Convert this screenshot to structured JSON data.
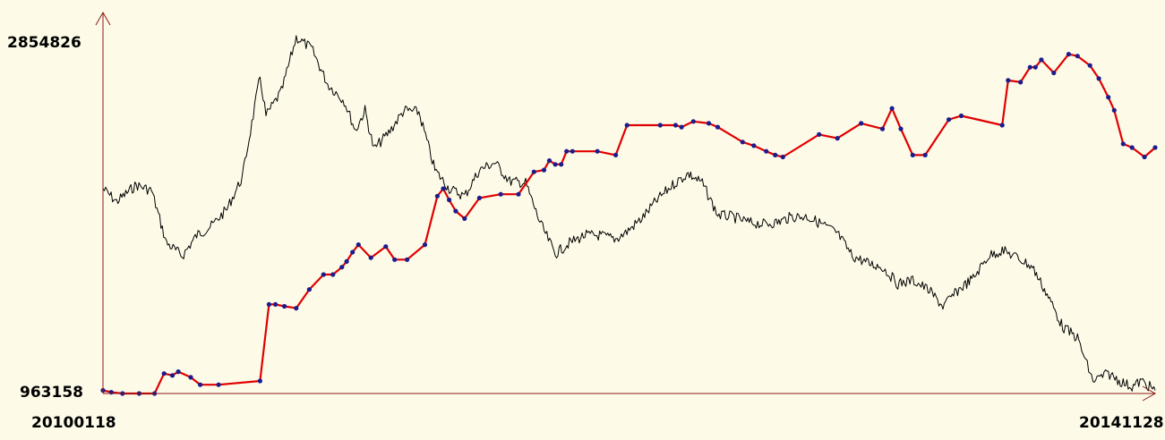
{
  "chart_data": {
    "type": "line",
    "y_labels": {
      "top": "2854826",
      "bottom": "963158"
    },
    "x_labels": {
      "start": "20100118",
      "end": "20141128"
    },
    "ylim": [
      963158,
      2854826
    ],
    "x_range": [
      "2010-01-18",
      "2014-11-28"
    ],
    "grid": false,
    "legend": "none",
    "colors": {
      "axis": "#8b1a1a",
      "series_black": "#000000",
      "series_red": "#e00000",
      "markers": "#1c1c8c",
      "background": "#fdfbe8"
    },
    "series": [
      {
        "color": "#000000",
        "style": "noisy-line",
        "x": [
          "2010-01-18",
          "2010-02-10",
          "2010-03-15",
          "2010-04-10",
          "2010-05-05",
          "2010-06-01",
          "2010-06-25",
          "2010-07-20",
          "2010-08-15",
          "2010-09-10",
          "2010-10-10",
          "2010-10-20",
          "2010-11-15",
          "2010-12-10",
          "2011-01-05",
          "2011-02-01",
          "2011-03-01",
          "2011-03-20",
          "2011-04-05",
          "2011-04-20",
          "2011-05-15",
          "2011-06-10",
          "2011-07-05",
          "2011-08-01",
          "2011-08-25",
          "2011-09-20",
          "2011-10-15",
          "2011-11-10",
          "2011-12-05",
          "2012-01-01",
          "2012-01-25",
          "2012-02-20",
          "2012-03-15",
          "2012-04-10",
          "2012-05-05",
          "2012-06-01",
          "2012-06-20",
          "2012-07-15",
          "2012-08-10",
          "2012-09-05",
          "2012-10-01",
          "2012-10-25",
          "2012-11-20",
          "2012-12-15",
          "2013-01-10",
          "2013-02-05",
          "2013-03-01",
          "2013-03-25",
          "2013-04-20",
          "2013-05-15",
          "2013-06-10",
          "2013-07-05",
          "2013-08-01",
          "2013-08-25",
          "2013-09-20",
          "2013-10-15",
          "2013-11-10",
          "2013-12-05",
          "2014-01-01",
          "2014-01-25",
          "2014-02-20",
          "2014-03-15",
          "2014-04-10",
          "2014-05-05",
          "2014-06-01",
          "2014-06-25",
          "2014-07-20",
          "2014-08-15",
          "2014-09-10",
          "2014-10-05",
          "2014-10-20",
          "2014-11-05",
          "2014-11-28"
        ],
        "y": [
          2060000,
          1990000,
          2080000,
          2050000,
          1770000,
          1700000,
          1810000,
          1860000,
          1950000,
          2120000,
          2660000,
          2450000,
          2580000,
          2870000,
          2810000,
          2620000,
          2530000,
          2370000,
          2480000,
          2270000,
          2360000,
          2480000,
          2470000,
          2160000,
          2060000,
          2020000,
          2160000,
          2200000,
          2100000,
          2090000,
          1880000,
          1710000,
          1770000,
          1810000,
          1810000,
          1790000,
          1830000,
          1900000,
          2000000,
          2080000,
          2140000,
          2090000,
          1920000,
          1910000,
          1880000,
          1870000,
          1880000,
          1910000,
          1910000,
          1870000,
          1820000,
          1700000,
          1660000,
          1640000,
          1550000,
          1570000,
          1520000,
          1430000,
          1520000,
          1580000,
          1700000,
          1730000,
          1690000,
          1640000,
          1480000,
          1320000,
          1260000,
          1030000,
          1070000,
          1020000,
          1000000,
          1030000,
          980000
        ]
      },
      {
        "color": "#e00000",
        "markers": true,
        "x": [
          "2010-01-18",
          "2010-02-01",
          "2010-02-20",
          "2010-03-20",
          "2010-04-15",
          "2010-05-01",
          "2010-05-15",
          "2010-05-25",
          "2010-06-15",
          "2010-07-01",
          "2010-08-01",
          "2010-10-10",
          "2010-10-25",
          "2010-11-05",
          "2010-11-20",
          "2010-12-10",
          "2011-01-01",
          "2011-01-25",
          "2011-02-10",
          "2011-02-25",
          "2011-03-05",
          "2011-03-15",
          "2011-03-25",
          "2011-04-15",
          "2011-05-10",
          "2011-05-25",
          "2011-06-15",
          "2011-07-15",
          "2011-08-05",
          "2011-08-15",
          "2011-08-25",
          "2011-09-05",
          "2011-09-20",
          "2011-10-15",
          "2011-11-20",
          "2011-12-20",
          "2012-01-15",
          "2012-02-01",
          "2012-02-10",
          "2012-02-20",
          "2012-03-01",
          "2012-03-10",
          "2012-03-20",
          "2012-05-01",
          "2012-06-01",
          "2012-06-20",
          "2012-08-15",
          "2012-09-10",
          "2012-09-20",
          "2012-10-10",
          "2012-11-05",
          "2012-11-20",
          "2013-01-01",
          "2013-01-20",
          "2013-02-10",
          "2013-02-25",
          "2013-03-10",
          "2013-05-10",
          "2013-06-10",
          "2013-07-20",
          "2013-08-25",
          "2013-09-10",
          "2013-09-25",
          "2013-10-15",
          "2013-11-05",
          "2013-12-15",
          "2014-01-05",
          "2014-03-15",
          "2014-03-25",
          "2014-04-15",
          "2014-05-01",
          "2014-05-10",
          "2014-05-20",
          "2014-06-10",
          "2014-07-05",
          "2014-07-20",
          "2014-08-10",
          "2014-08-25",
          "2014-09-10",
          "2014-09-20",
          "2014-10-05",
          "2014-10-20",
          "2014-11-10",
          "2014-11-28"
        ],
        "y": [
          980000,
          970000,
          963158,
          963158,
          963158,
          1070000,
          1060000,
          1080000,
          1050000,
          1010000,
          1010000,
          1030000,
          1440000,
          1440000,
          1430000,
          1420000,
          1520000,
          1600000,
          1600000,
          1640000,
          1670000,
          1720000,
          1760000,
          1690000,
          1750000,
          1680000,
          1680000,
          1760000,
          2020000,
          2060000,
          2000000,
          1940000,
          1900000,
          2010000,
          2030000,
          2030000,
          2150000,
          2160000,
          2210000,
          2190000,
          2190000,
          2260000,
          2260000,
          2260000,
          2240000,
          2400000,
          2400000,
          2400000,
          2390000,
          2420000,
          2410000,
          2390000,
          2310000,
          2290000,
          2260000,
          2240000,
          2230000,
          2350000,
          2330000,
          2410000,
          2380000,
          2490000,
          2380000,
          2240000,
          2240000,
          2430000,
          2450000,
          2400000,
          2640000,
          2630000,
          2710000,
          2710000,
          2750000,
          2680000,
          2780000,
          2770000,
          2720000,
          2650000,
          2550000,
          2480000,
          2300000,
          2280000,
          2230000,
          2280000
        ]
      }
    ]
  }
}
